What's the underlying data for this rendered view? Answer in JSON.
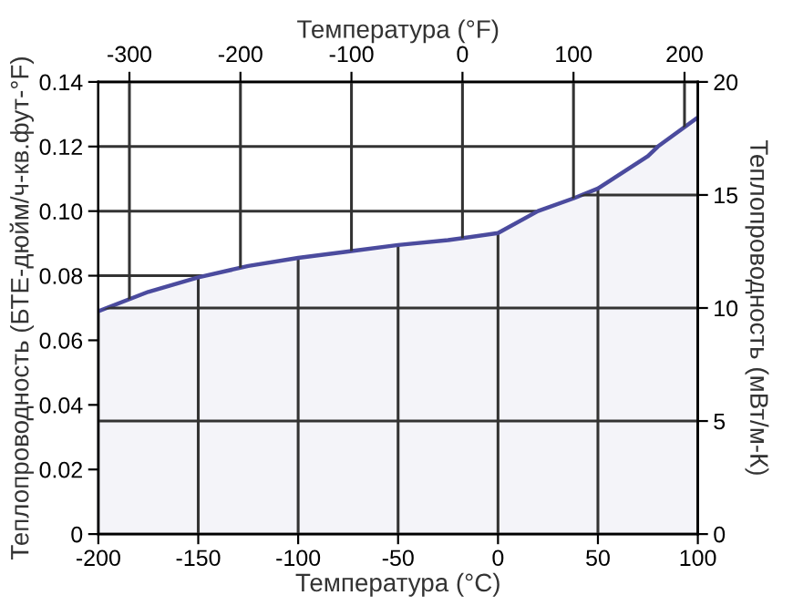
{
  "chart_data": {
    "type": "area",
    "xlabel": "Температура (°C)",
    "x2label": "Температура (°F)",
    "ylabel": "Теплопроводность (БТЕ-дюйм/ч-кв.фут-°F)",
    "y2label": "Теплопроводность (мВт/м-К)",
    "x": [
      -200,
      -175,
      -150,
      -125,
      -100,
      -75,
      -50,
      -25,
      0,
      20,
      38,
      50,
      75,
      80,
      100
    ],
    "series": [
      {
        "color": "#4b4b9e",
        "values": [
          0.069,
          0.075,
          0.0795,
          0.083,
          0.0855,
          0.0875,
          0.0895,
          0.091,
          0.0932,
          0.1,
          0.104,
          0.107,
          0.117,
          0.12,
          0.129
        ]
      }
    ],
    "xlim": [
      -200,
      100
    ],
    "xticks": [
      -200,
      -150,
      -100,
      -50,
      0,
      50,
      100
    ],
    "x2lim": [
      -328,
      212
    ],
    "x2ticks": [
      -300,
      -200,
      -100,
      0,
      100,
      200
    ],
    "ylim": [
      0,
      0.14
    ],
    "yticks": [
      0,
      0.02,
      0.04,
      0.06,
      0.08,
      {
        "value": 0.1,
        "label": "0.10"
      },
      0.12,
      0.14
    ],
    "y2lim": [
      0,
      20
    ],
    "y2ticks": [
      0,
      5,
      10,
      15,
      20
    ],
    "grid": true,
    "legend": false
  }
}
